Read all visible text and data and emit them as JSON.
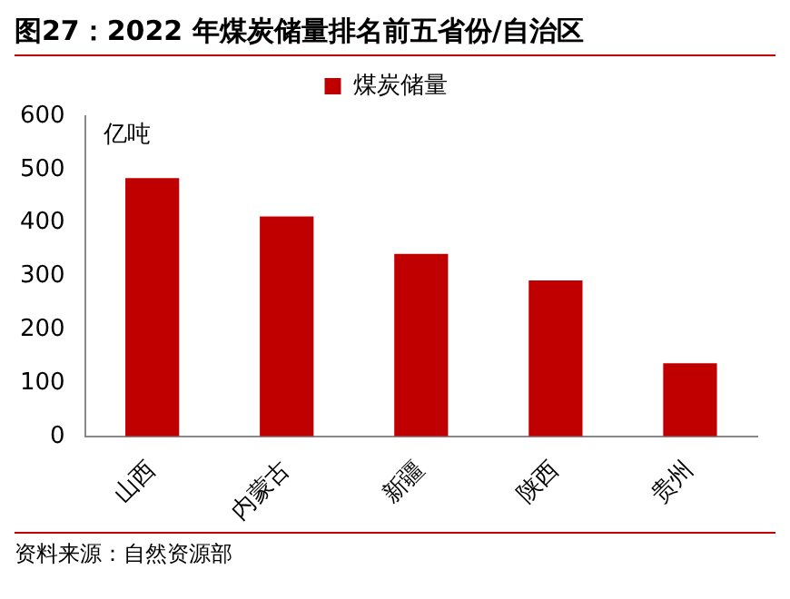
{
  "chart_data": {
    "type": "bar",
    "title": "图27：2022 年煤炭储量排名前五省份/自治区",
    "ylabel": "亿吨",
    "categories": [
      "山西",
      "内蒙古",
      "新疆",
      "陕西",
      "贵州"
    ],
    "series": [
      {
        "name": "煤炭储量",
        "color": "#c00000",
        "values": [
          484,
          412,
          342,
          292,
          137
        ]
      }
    ],
    "ylim": [
      0,
      600
    ],
    "yticks": [
      0,
      100,
      200,
      300,
      400,
      500,
      600
    ],
    "grid": false,
    "legend": "top",
    "annotations": [
      "资料来源：自然资源部"
    ]
  }
}
